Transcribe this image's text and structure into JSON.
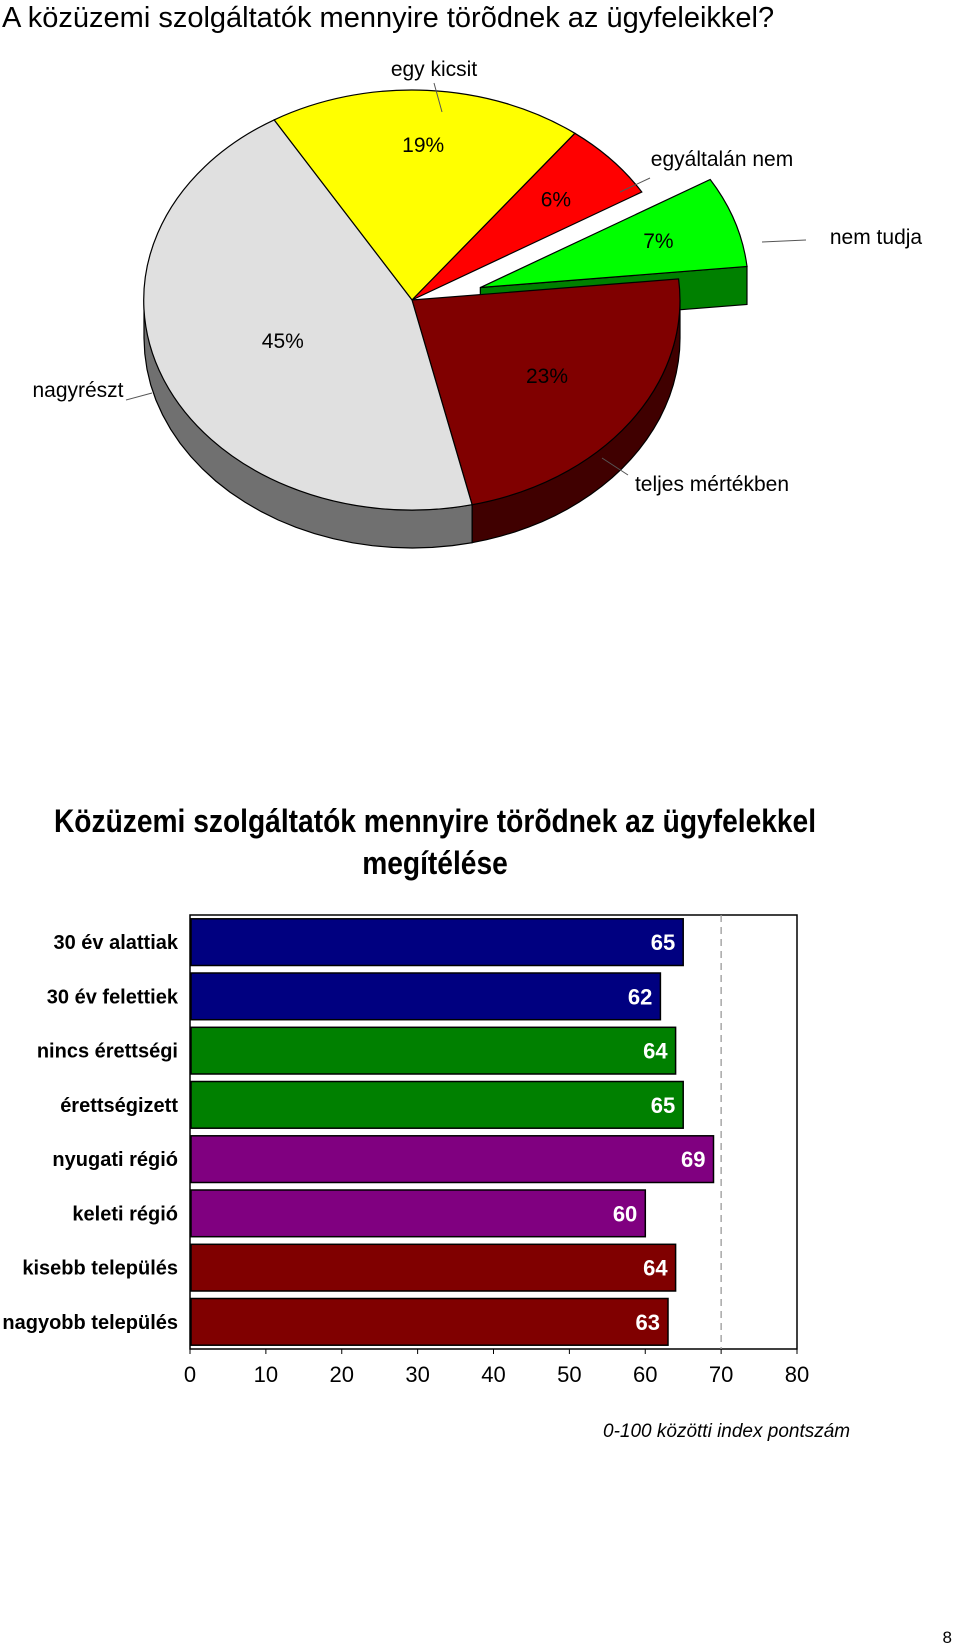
{
  "page": {
    "title": "A közüzemi szolgáltatók mennyire törõdnek az ügyfeleikkel?",
    "page_number": "8"
  },
  "chart_data": [
    {
      "type": "pie",
      "title": "",
      "slices": [
        {
          "name": "egy kicsit",
          "value": 19,
          "label": "19%",
          "color": "#ffff00"
        },
        {
          "name": "egyáltalán nem",
          "value": 6,
          "label": "6%",
          "color": "#ff0000"
        },
        {
          "name": "nem tudja",
          "value": 7,
          "label": "7%",
          "color": "#00ff00",
          "exploded": true
        },
        {
          "name": "teljes mértékben",
          "value": 23,
          "label": "23%",
          "color": "#800000"
        },
        {
          "name": "nagyrészt",
          "value": 45,
          "label": "45%",
          "color": "#e0e0e0"
        }
      ],
      "style": "3d"
    },
    {
      "type": "bar",
      "orientation": "horizontal",
      "title": "Közüzemi szolgáltatók mennyire törõdnek az ügyfelekkel megítélése",
      "categories": [
        "30 év alattiak",
        "30 év felettiek",
        "nincs érettségi",
        "érettségizett",
        "nyugati régió",
        "keleti régió",
        "kisebb település",
        "nagyobb település"
      ],
      "values": [
        65,
        62,
        64,
        65,
        69,
        60,
        64,
        63
      ],
      "colors": [
        "#000080",
        "#000080",
        "#008000",
        "#008000",
        "#800080",
        "#800080",
        "#800000",
        "#800000"
      ],
      "xlabel": "0-100 közötti index pontszám",
      "xlim": [
        0,
        80
      ],
      "xticks": [
        "0",
        "10",
        "20",
        "30",
        "40",
        "50",
        "60",
        "70",
        "80"
      ],
      "reference_line": 70,
      "grid": false
    }
  ]
}
